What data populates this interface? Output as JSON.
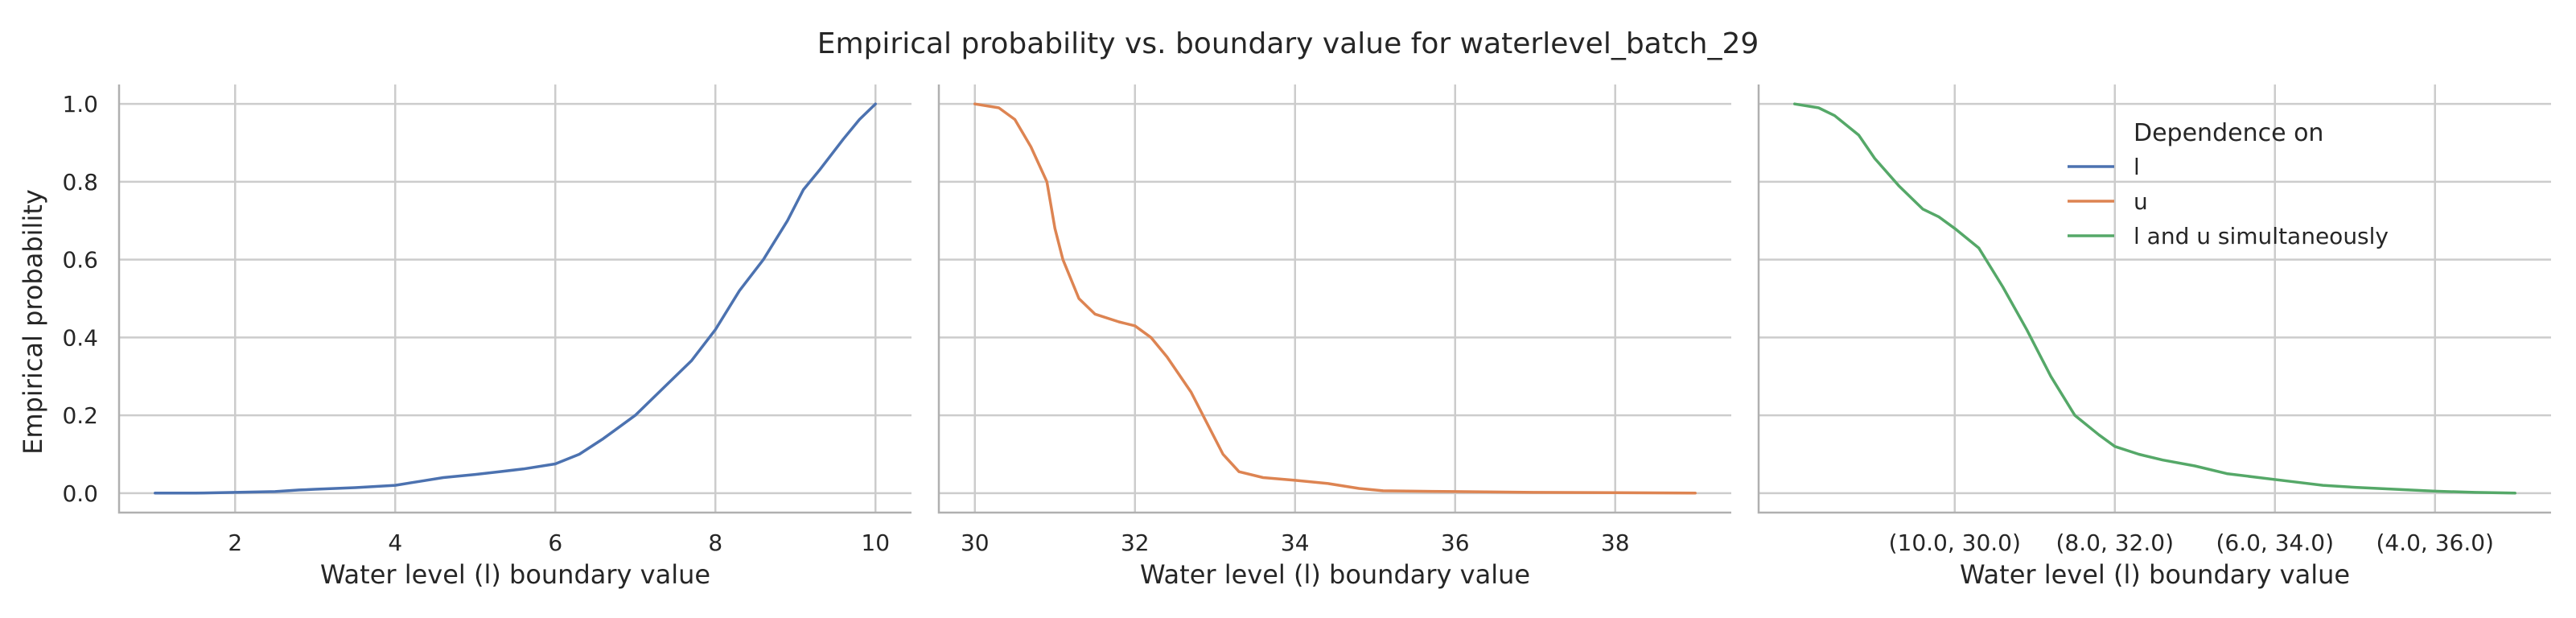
{
  "figure_title": "Empirical probability vs. boundary value for waterlevel_batch_29",
  "colors": {
    "l": "#4c72b0",
    "u": "#dd8452",
    "lu": "#55a868"
  },
  "chart_data": [
    {
      "type": "line",
      "xlabel": "Water level (l) boundary value",
      "ylabel": "Empirical probability",
      "xlim": [
        0.55,
        10.45
      ],
      "ylim": [
        -0.05,
        1.05
      ],
      "xticks": [
        2,
        4,
        6,
        8,
        10
      ],
      "xtick_labels": [
        "2",
        "4",
        "6",
        "8",
        "10"
      ],
      "yticks": [
        0.0,
        0.2,
        0.4,
        0.6,
        0.8,
        1.0
      ],
      "ytick_labels": [
        "0.0",
        "0.2",
        "0.4",
        "0.6",
        "0.8",
        "1.0"
      ],
      "grid": true,
      "series": [
        {
          "key": "l",
          "x": [
            1.0,
            1.5,
            2.0,
            2.5,
            2.8,
            3.0,
            3.5,
            4.0,
            4.3,
            4.6,
            5.0,
            5.3,
            5.6,
            6.0,
            6.3,
            6.6,
            7.0,
            7.4,
            7.7,
            8.0,
            8.3,
            8.6,
            8.9,
            9.1,
            9.3,
            9.6,
            9.8,
            10.0
          ],
          "y": [
            0.0,
            0.0,
            0.002,
            0.004,
            0.008,
            0.01,
            0.014,
            0.02,
            0.03,
            0.04,
            0.048,
            0.055,
            0.062,
            0.075,
            0.1,
            0.14,
            0.2,
            0.28,
            0.34,
            0.42,
            0.52,
            0.6,
            0.7,
            0.78,
            0.83,
            0.91,
            0.96,
            1.0
          ]
        }
      ]
    },
    {
      "type": "line",
      "xlabel": "Water level (l) boundary value",
      "ylabel": "",
      "xlim": [
        29.55,
        39.45
      ],
      "ylim": [
        -0.05,
        1.05
      ],
      "xticks": [
        30,
        32,
        34,
        36,
        38
      ],
      "xtick_labels": [
        "30",
        "32",
        "34",
        "36",
        "38"
      ],
      "yticks": [
        0.0,
        0.2,
        0.4,
        0.6,
        0.8,
        1.0
      ],
      "grid": true,
      "series": [
        {
          "key": "u",
          "x": [
            30.0,
            30.3,
            30.5,
            30.7,
            30.9,
            31.0,
            31.1,
            31.3,
            31.5,
            31.8,
            32.0,
            32.2,
            32.4,
            32.7,
            32.9,
            33.1,
            33.3,
            33.6,
            34.0,
            34.4,
            34.8,
            35.1,
            35.5,
            36.0,
            36.5,
            37.0,
            38.0,
            39.0
          ],
          "y": [
            1.0,
            0.99,
            0.96,
            0.89,
            0.8,
            0.68,
            0.6,
            0.5,
            0.46,
            0.44,
            0.43,
            0.4,
            0.35,
            0.26,
            0.18,
            0.1,
            0.055,
            0.04,
            0.033,
            0.025,
            0.012,
            0.006,
            0.005,
            0.004,
            0.003,
            0.002,
            0.001,
            0.0
          ]
        }
      ]
    },
    {
      "type": "line",
      "xlabel": "Water level (l) boundary value",
      "ylabel": "",
      "xlim": [
        -0.45,
        9.45
      ],
      "ylim": [
        -0.05,
        1.05
      ],
      "xticks": [
        2,
        4,
        6,
        8
      ],
      "xtick_labels": [
        "(10.0, 30.0)",
        "(8.0, 32.0)",
        "(6.0, 34.0)",
        "(4.0, 36.0)"
      ],
      "yticks": [
        0.0,
        0.2,
        0.4,
        0.6,
        0.8,
        1.0
      ],
      "grid": true,
      "series": [
        {
          "key": "lu",
          "x": [
            0.0,
            0.3,
            0.5,
            0.8,
            1.0,
            1.3,
            1.6,
            1.8,
            2.0,
            2.3,
            2.6,
            2.9,
            3.2,
            3.5,
            3.8,
            4.0,
            4.3,
            4.6,
            5.0,
            5.4,
            5.8,
            6.2,
            6.6,
            7.0,
            7.5,
            8.0,
            8.5,
            9.0
          ],
          "y": [
            1.0,
            0.99,
            0.97,
            0.92,
            0.86,
            0.79,
            0.73,
            0.71,
            0.68,
            0.63,
            0.53,
            0.42,
            0.3,
            0.2,
            0.15,
            0.12,
            0.1,
            0.085,
            0.07,
            0.05,
            0.04,
            0.03,
            0.02,
            0.015,
            0.01,
            0.005,
            0.002,
            0.0
          ]
        }
      ]
    }
  ],
  "legend": {
    "title": "Dependence on",
    "placement": "top-right",
    "entries": [
      {
        "key": "l",
        "label": "l"
      },
      {
        "key": "u",
        "label": "u"
      },
      {
        "key": "lu",
        "label": "l and u simultaneously"
      }
    ]
  }
}
